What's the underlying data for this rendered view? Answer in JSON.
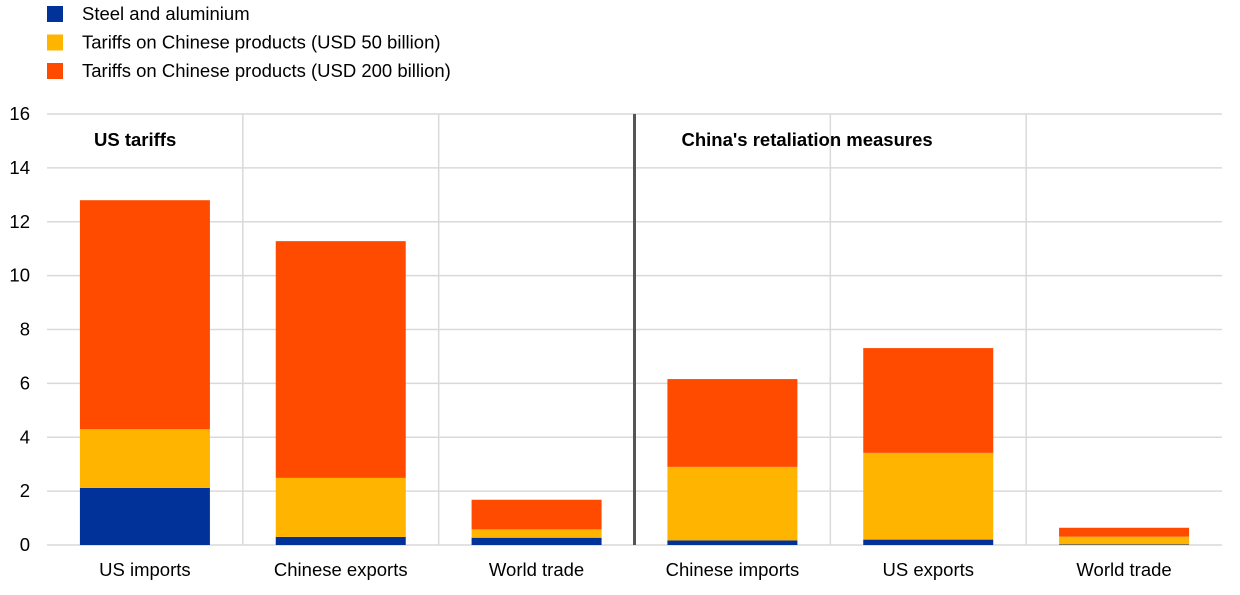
{
  "chart_data": {
    "type": "bar",
    "stacked": true,
    "title": "",
    "xlabel": "",
    "ylabel": "",
    "ylim": [
      0,
      16
    ],
    "yticks": [
      0,
      2,
      4,
      6,
      8,
      10,
      12,
      14,
      16
    ],
    "grid": true,
    "legend_position": "top-left",
    "categories": [
      "US imports",
      "Chinese exports",
      "World trade",
      "Chinese imports",
      "US exports",
      "World trade"
    ],
    "panels": [
      {
        "label": "US tariffs",
        "categories": [
          0,
          1,
          2
        ]
      },
      {
        "label": "China's retaliation measures",
        "categories": [
          3,
          4,
          5
        ]
      }
    ],
    "series": [
      {
        "name": "Steel and aluminium",
        "color": "#003299",
        "values": [
          2.12,
          0.3,
          0.27,
          0.17,
          0.2,
          0.02
        ]
      },
      {
        "name": "Tariffs on Chinese products (USD 50 billion)",
        "color": "#FFB400",
        "values": [
          2.18,
          2.19,
          0.31,
          2.73,
          3.22,
          0.29
        ]
      },
      {
        "name": "Tariffs on Chinese products (USD 200 billion)",
        "color": "#FF4B00",
        "values": [
          8.5,
          8.79,
          1.1,
          3.26,
          3.89,
          0.33
        ]
      }
    ]
  }
}
